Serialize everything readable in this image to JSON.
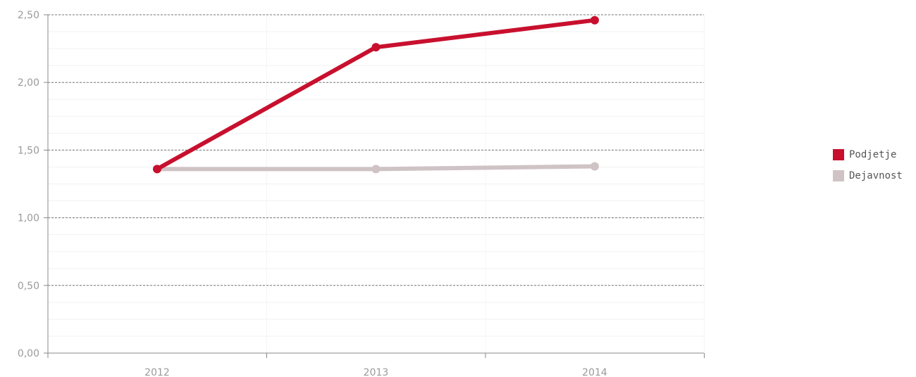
{
  "chart_data": {
    "type": "line",
    "title": "",
    "xlabel": "",
    "ylabel": "",
    "categories": [
      "2012",
      "2013",
      "2014"
    ],
    "ylim": [
      0,
      2.5
    ],
    "yticks": [
      "0,00",
      "0,50",
      "1,00",
      "1,50",
      "2,00",
      "2,50"
    ],
    "grid": true,
    "legend_position": "right",
    "series": [
      {
        "name": "Podjetje",
        "color": "#c8102e",
        "values": [
          1.36,
          2.26,
          2.46
        ]
      },
      {
        "name": "Dejavnost",
        "color": "#cfc3c5",
        "values": [
          1.36,
          1.36,
          1.38
        ]
      }
    ]
  }
}
